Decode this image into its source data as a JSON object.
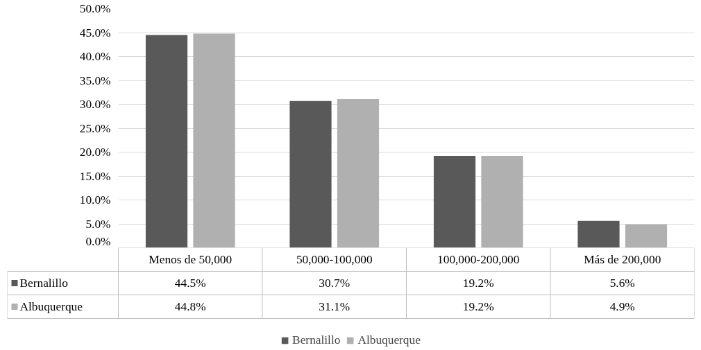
{
  "chart_data": {
    "type": "bar",
    "categories": [
      "Menos de 50,000",
      "50,000-100,000",
      "100,000-200,000",
      "Más de 200,000"
    ],
    "series": [
      {
        "name": "Bernalillo",
        "color": "#595959",
        "values": [
          44.5,
          30.7,
          19.2,
          5.6
        ],
        "value_labels": [
          "44.5%",
          "30.7%",
          "19.2%",
          "5.6%"
        ]
      },
      {
        "name": "Albuquerque",
        "color": "#b0b0b0",
        "values": [
          44.8,
          31.1,
          19.2,
          4.9
        ],
        "value_labels": [
          "44.8%",
          "31.1%",
          "19.2%",
          "4.9%"
        ]
      }
    ],
    "ylim": [
      0,
      50
    ],
    "yticks": [
      {
        "value": 0,
        "label": "0.0%"
      },
      {
        "value": 5,
        "label": "5.0%"
      },
      {
        "value": 10,
        "label": "10.0%"
      },
      {
        "value": 15,
        "label": "15.0%"
      },
      {
        "value": 20,
        "label": "20.0%"
      },
      {
        "value": 25,
        "label": "25.0%"
      },
      {
        "value": 30,
        "label": "30.0%"
      },
      {
        "value": 35,
        "label": "35.0%"
      },
      {
        "value": 40,
        "label": "40.0%"
      },
      {
        "value": 45,
        "label": "45.0%"
      },
      {
        "value": 50,
        "label": "50.0%"
      }
    ],
    "grid": "y",
    "legend": "bottom"
  }
}
